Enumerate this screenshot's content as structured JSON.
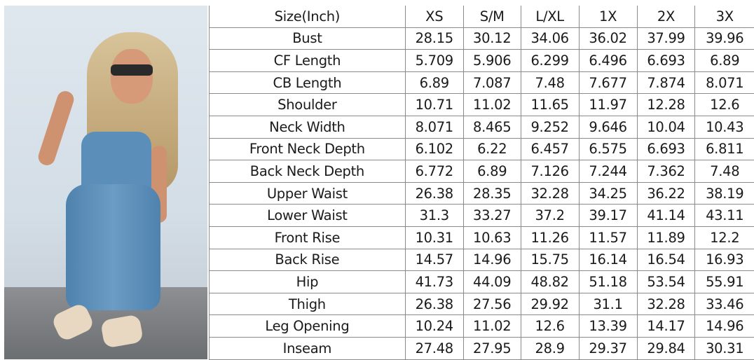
{
  "colors": {
    "jumpsuit": "#5b8fb9",
    "wall": "#d9e2ea",
    "floor": "#7d8083",
    "grid": "#8a8a8a"
  },
  "size_chart": {
    "header": [
      "Size(Inch)",
      "XS",
      "S/M",
      "L/XL",
      "1X",
      "2X",
      "3X"
    ],
    "rows": [
      [
        "Bust",
        "28.15",
        "30.12",
        "34.06",
        "36.02",
        "37.99",
        "39.96"
      ],
      [
        "CF Length",
        "5.709",
        "5.906",
        "6.299",
        "6.496",
        "6.693",
        "6.89"
      ],
      [
        "CB Length",
        "6.89",
        "7.087",
        "7.48",
        "7.677",
        "7.874",
        "8.071"
      ],
      [
        "Shoulder",
        "10.71",
        "11.02",
        "11.65",
        "11.97",
        "12.28",
        "12.6"
      ],
      [
        "Neck Width",
        "8.071",
        "8.465",
        "9.252",
        "9.646",
        "10.04",
        "10.43"
      ],
      [
        "Front Neck Depth",
        "6.102",
        "6.22",
        "6.457",
        "6.575",
        "6.693",
        "6.811"
      ],
      [
        "Back Neck Depth",
        "6.772",
        "6.89",
        "7.126",
        "7.244",
        "7.362",
        "7.48"
      ],
      [
        "Upper Waist",
        "26.38",
        "28.35",
        "32.28",
        "34.25",
        "36.22",
        "38.19"
      ],
      [
        "Lower Waist",
        "31.3",
        "33.27",
        "37.2",
        "39.17",
        "41.14",
        "43.11"
      ],
      [
        "Front Rise",
        "10.31",
        "10.63",
        "11.26",
        "11.57",
        "11.89",
        "12.2"
      ],
      [
        "Back Rise",
        "14.57",
        "14.96",
        "15.75",
        "16.14",
        "16.54",
        "16.93"
      ],
      [
        "Hip",
        "41.73",
        "44.09",
        "48.82",
        "51.18",
        "53.54",
        "55.91"
      ],
      [
        "Thigh",
        "26.38",
        "27.56",
        "29.92",
        "31.1",
        "32.28",
        "33.46"
      ],
      [
        "Leg Opening",
        "10.24",
        "11.02",
        "12.6",
        "13.39",
        "14.17",
        "14.96"
      ],
      [
        "Inseam",
        "27.48",
        "27.95",
        "28.9",
        "29.37",
        "29.84",
        "30.31"
      ]
    ]
  }
}
